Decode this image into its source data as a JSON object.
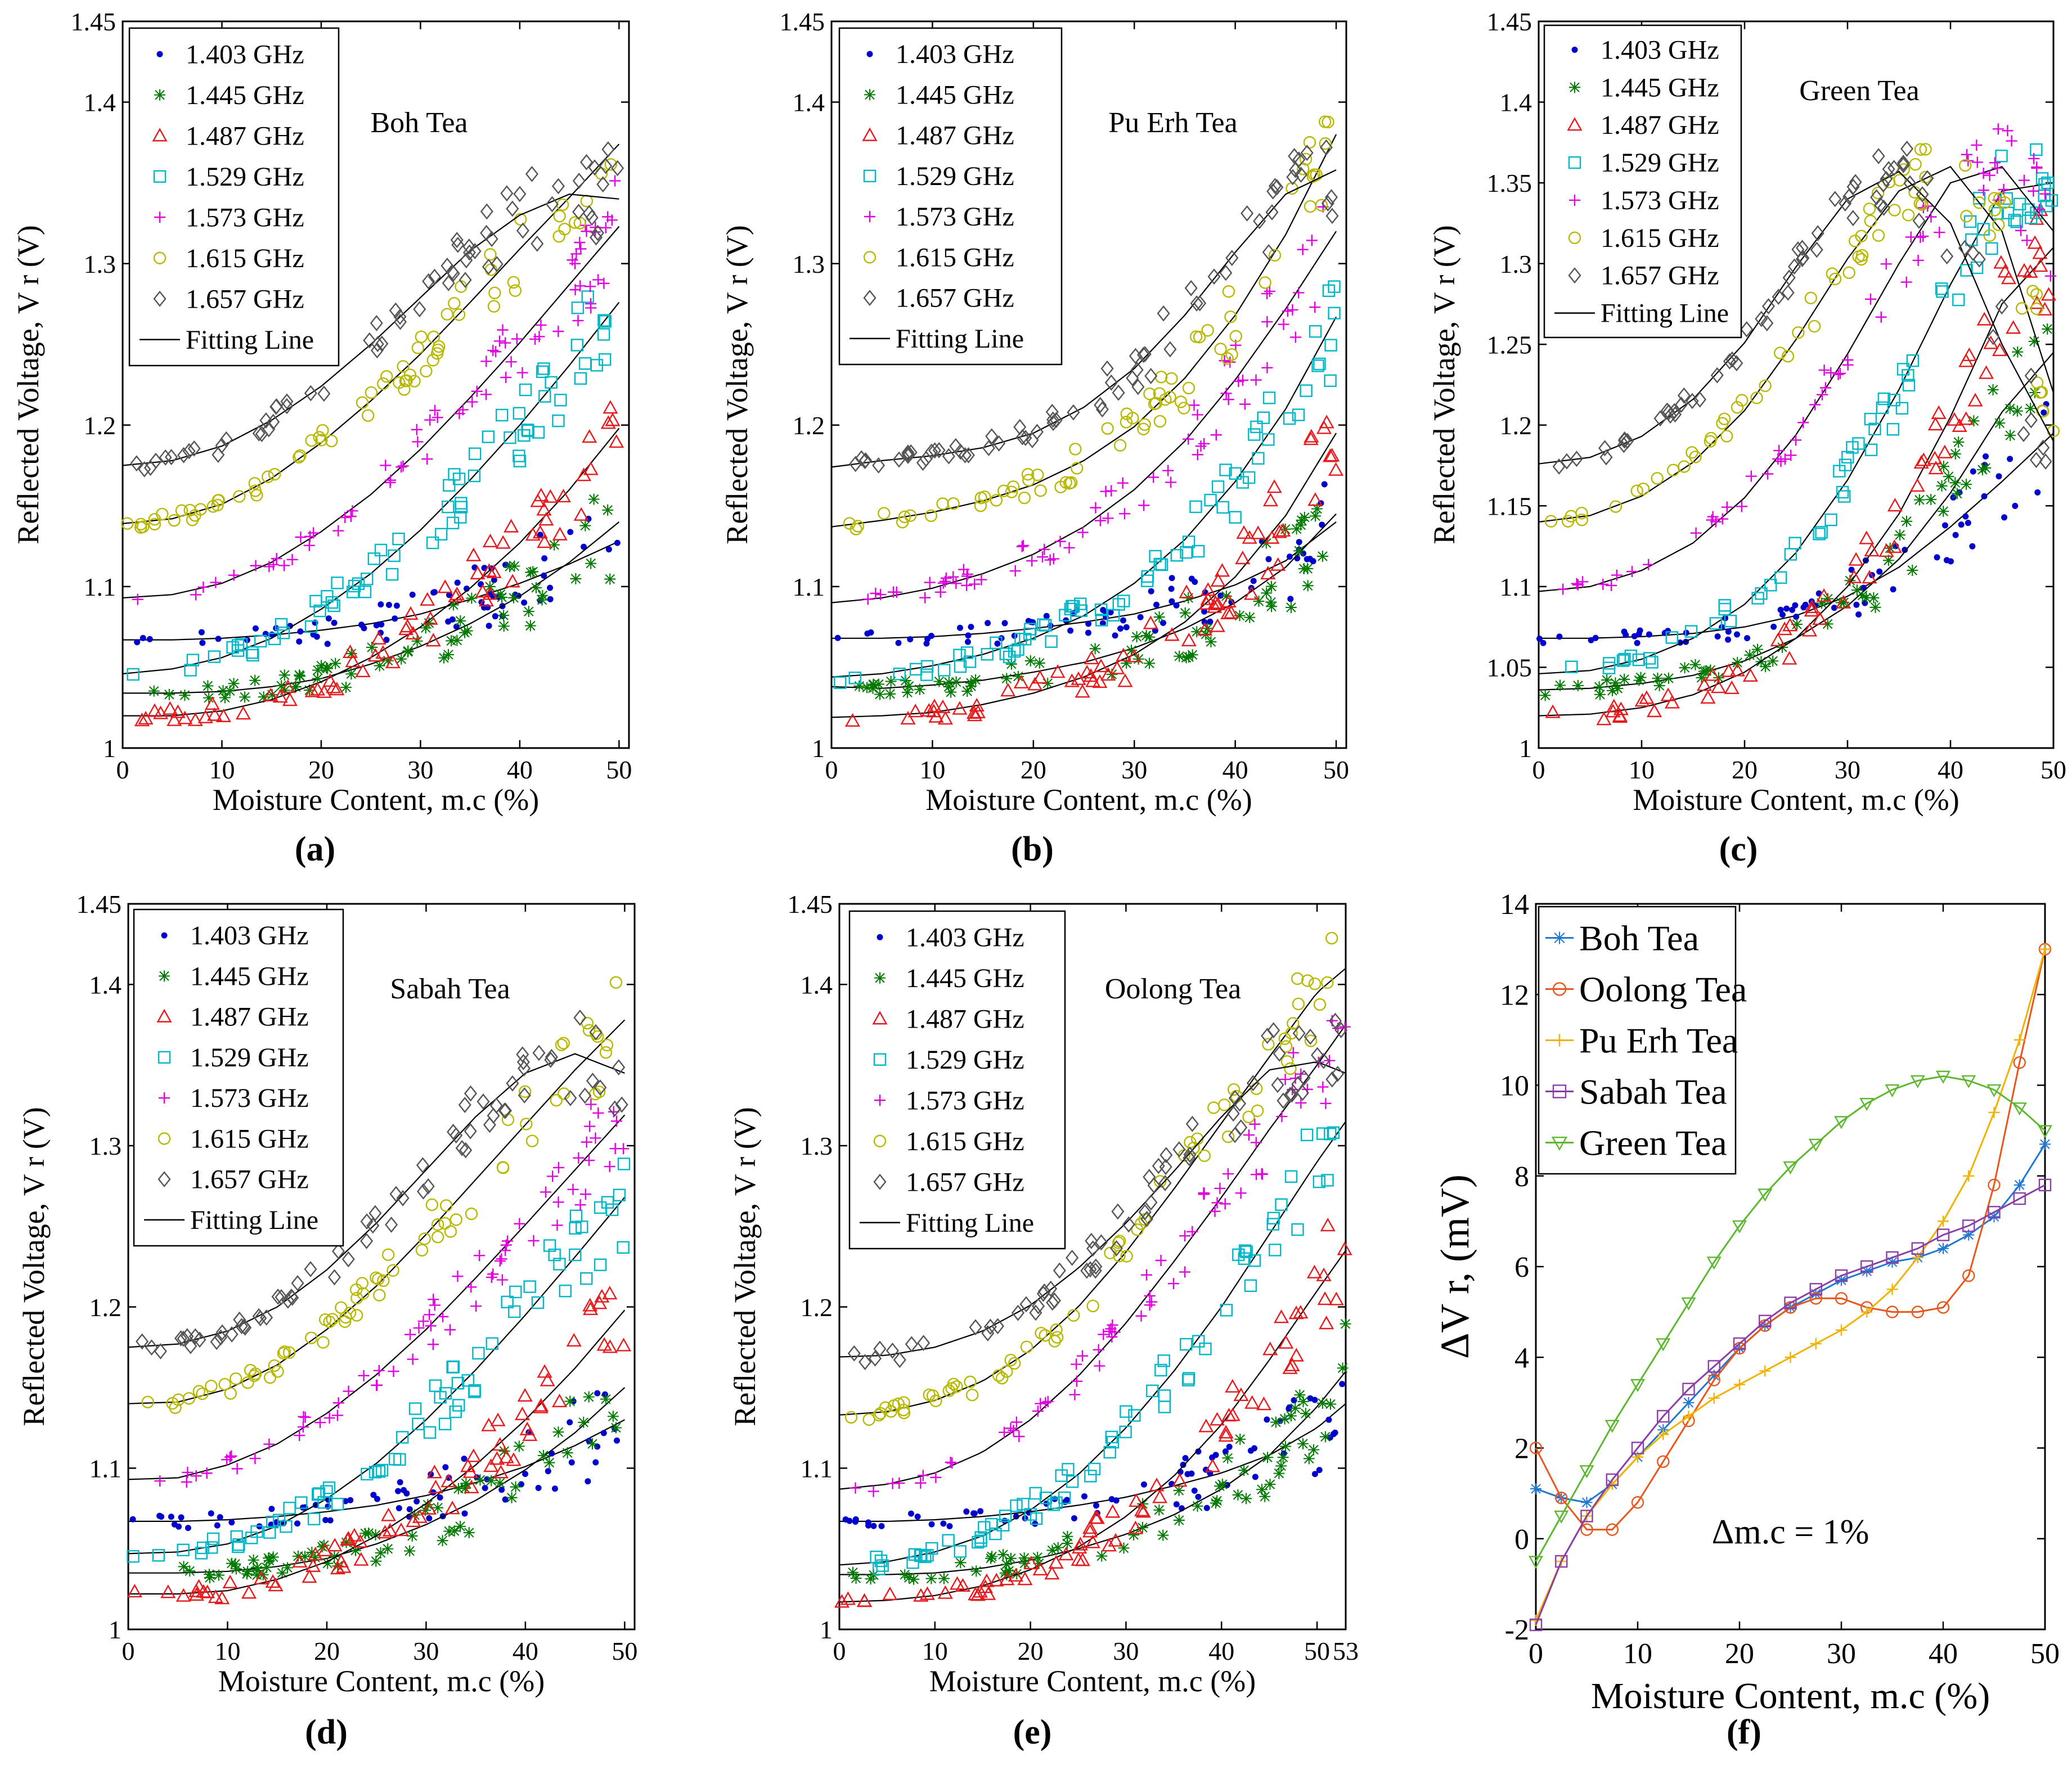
{
  "figure": {
    "panel_labels": [
      "(a)",
      "(b)",
      "(c)",
      "(d)",
      "(e)",
      "(f)"
    ]
  },
  "colors": {
    "1.403 GHz": "#0000cc",
    "1.445 GHz": "#007a00",
    "1.487 GHz": "#e8191b",
    "1.529 GHz": "#00b7c7",
    "1.573 GHz": "#e000e0",
    "1.615 GHz": "#b8b800",
    "1.657 GHz": "#555555",
    "fit": "#000000",
    "Boh Tea": "#1f77d4",
    "Oolong Tea": "#e8561c",
    "Pu Erh Tea": "#f2b300",
    "Sabah Tea": "#8b3ea8",
    "Green Tea": "#5cb82e"
  },
  "chart_data": [
    {
      "id": "a",
      "type": "scatter",
      "title": "Boh Tea",
      "xlabel": "Moisture Content, m.c (%)",
      "ylabel": "Reflected Voltage, V r (V)",
      "xlim": [
        0,
        51
      ],
      "ylim": [
        1,
        1.45
      ],
      "xticks": [
        "0",
        "10",
        "20",
        "30",
        "40",
        "50"
      ],
      "yticks": [
        "1",
        "1.1",
        "1.2",
        "1.3",
        "1.4",
        "1.45"
      ],
      "legend": [
        "1.403 GHz",
        "1.445 GHz",
        "1.487 GHz",
        "1.529 GHz",
        "1.573 GHz",
        "1.615 GHz",
        "1.657 GHz",
        "Fitting Line"
      ],
      "x": [
        0,
        5,
        10,
        15,
        20,
        25,
        30,
        35,
        40,
        45,
        50
      ],
      "series": [
        {
          "name": "1.403 GHz",
          "marker": "dot",
          "values": [
            1.067,
            1.067,
            1.068,
            1.07,
            1.073,
            1.077,
            1.083,
            1.092,
            1.102,
            1.114,
            1.128
          ]
        },
        {
          "name": "1.445 GHz",
          "marker": "asterisk",
          "values": [
            1.034,
            1.034,
            1.035,
            1.038,
            1.043,
            1.052,
            1.063,
            1.077,
            1.094,
            1.115,
            1.14
          ]
        },
        {
          "name": "1.487 GHz",
          "marker": "triangle",
          "values": [
            1.02,
            1.02,
            1.023,
            1.03,
            1.041,
            1.056,
            1.075,
            1.099,
            1.127,
            1.16,
            1.198
          ]
        },
        {
          "name": "1.529 GHz",
          "marker": "square",
          "values": [
            1.046,
            1.049,
            1.056,
            1.068,
            1.086,
            1.108,
            1.135,
            1.166,
            1.2,
            1.237,
            1.276
          ]
        },
        {
          "name": "1.573 GHz",
          "marker": "plus",
          "values": [
            1.093,
            1.095,
            1.102,
            1.115,
            1.134,
            1.157,
            1.185,
            1.217,
            1.251,
            1.287,
            1.323
          ]
        },
        {
          "name": "1.615 GHz",
          "marker": "circle",
          "values": [
            1.139,
            1.142,
            1.151,
            1.167,
            1.189,
            1.215,
            1.244,
            1.276,
            1.309,
            1.341,
            1.374
          ]
        },
        {
          "name": "1.657 GHz",
          "marker": "diamond",
          "values": [
            1.175,
            1.178,
            1.187,
            1.203,
            1.224,
            1.25,
            1.279,
            1.308,
            1.33,
            1.343,
            1.34
          ]
        }
      ]
    },
    {
      "id": "b",
      "type": "scatter",
      "title": "Pu Erh Tea",
      "xlabel": "Moisture Content, m.c (%)",
      "ylabel": "Reflected Voltage, V r (V)",
      "xlim": [
        0,
        51
      ],
      "ylim": [
        1,
        1.45
      ],
      "xticks": [
        "0",
        "10",
        "20",
        "30",
        "40",
        "50"
      ],
      "yticks": [
        "1",
        "1.1",
        "1.2",
        "1.3",
        "1.4",
        "1.45"
      ],
      "legend": [
        "1.403 GHz",
        "1.445 GHz",
        "1.487 GHz",
        "1.529 GHz",
        "1.573 GHz",
        "1.615 GHz",
        "1.657 GHz",
        "Fitting Line"
      ],
      "x": [
        0,
        5,
        10,
        15,
        20,
        25,
        30,
        35,
        40,
        45,
        50
      ],
      "series": [
        {
          "name": "1.403 GHz",
          "marker": "dot",
          "values": [
            1.068,
            1.068,
            1.069,
            1.071,
            1.074,
            1.078,
            1.083,
            1.091,
            1.101,
            1.116,
            1.14
          ]
        },
        {
          "name": "1.445 GHz",
          "marker": "asterisk",
          "values": [
            1.038,
            1.037,
            1.039,
            1.042,
            1.047,
            1.053,
            1.062,
            1.074,
            1.09,
            1.112,
            1.145
          ]
        },
        {
          "name": "1.487 GHz",
          "marker": "triangle",
          "values": [
            1.019,
            1.02,
            1.022,
            1.027,
            1.034,
            1.044,
            1.058,
            1.078,
            1.106,
            1.144,
            1.195
          ]
        },
        {
          "name": "1.529 GHz",
          "marker": "square",
          "values": [
            1.044,
            1.046,
            1.051,
            1.058,
            1.068,
            1.082,
            1.102,
            1.129,
            1.165,
            1.21,
            1.267
          ]
        },
        {
          "name": "1.573 GHz",
          "marker": "plus",
          "values": [
            1.09,
            1.093,
            1.099,
            1.108,
            1.12,
            1.137,
            1.16,
            1.19,
            1.228,
            1.272,
            1.32
          ]
        },
        {
          "name": "1.615 GHz",
          "marker": "circle",
          "values": [
            1.137,
            1.141,
            1.146,
            1.153,
            1.163,
            1.178,
            1.199,
            1.229,
            1.268,
            1.318,
            1.38
          ]
        },
        {
          "name": "1.657 GHz",
          "marker": "diamond",
          "values": [
            1.174,
            1.178,
            1.181,
            1.186,
            1.195,
            1.211,
            1.235,
            1.268,
            1.307,
            1.343,
            1.358
          ]
        }
      ]
    },
    {
      "id": "c",
      "type": "scatter",
      "title": "Green Tea",
      "xlabel": "Moisture Content, m.c (%)",
      "ylabel": "Reflected Voltage, V r (V)",
      "xlim": [
        0,
        50
      ],
      "ylim": [
        1,
        1.45
      ],
      "xticks": [
        "0",
        "10",
        "20",
        "30",
        "40",
        "50"
      ],
      "yticks": [
        "1",
        "1.05",
        "1.1",
        "1.15",
        "1.2",
        "1.25",
        "1.3",
        "1.35",
        "1.4",
        "1.45"
      ],
      "legend": [
        "1.403 GHz",
        "1.445 GHz",
        "1.487 GHz",
        "1.529 GHz",
        "1.573 GHz",
        "1.615 GHz",
        "1.657 GHz",
        "Fitting Line"
      ],
      "x": [
        0,
        5,
        10,
        15,
        20,
        25,
        30,
        35,
        40,
        45,
        50
      ],
      "series": [
        {
          "name": "1.403 GHz",
          "marker": "dot",
          "values": [
            1.068,
            1.068,
            1.069,
            1.071,
            1.075,
            1.082,
            1.094,
            1.112,
            1.137,
            1.165,
            1.195
          ]
        },
        {
          "name": "1.445 GHz",
          "marker": "asterisk",
          "values": [
            1.036,
            1.037,
            1.04,
            1.045,
            1.054,
            1.068,
            1.088,
            1.117,
            1.158,
            1.208,
            1.245
          ]
        },
        {
          "name": "1.487 GHz",
          "marker": "triangle",
          "values": [
            1.02,
            1.021,
            1.025,
            1.033,
            1.047,
            1.068,
            1.1,
            1.145,
            1.205,
            1.275,
            1.31
          ]
        },
        {
          "name": "1.529 GHz",
          "marker": "square",
          "values": [
            1.046,
            1.048,
            1.055,
            1.068,
            1.089,
            1.121,
            1.166,
            1.222,
            1.287,
            1.345,
            1.35
          ]
        },
        {
          "name": "1.573 GHz",
          "marker": "plus",
          "values": [
            1.097,
            1.1,
            1.11,
            1.127,
            1.155,
            1.194,
            1.244,
            1.3,
            1.35,
            1.36,
            1.32
          ]
        },
        {
          "name": "1.615 GHz",
          "marker": "circle",
          "values": [
            1.14,
            1.144,
            1.156,
            1.177,
            1.209,
            1.253,
            1.303,
            1.345,
            1.36,
            1.32,
            1.22
          ]
        },
        {
          "name": "1.657 GHz",
          "marker": "diamond",
          "values": [
            1.176,
            1.18,
            1.193,
            1.216,
            1.251,
            1.298,
            1.34,
            1.357,
            1.325,
            1.25,
            1.19
          ]
        }
      ]
    },
    {
      "id": "d",
      "type": "scatter",
      "title": "Sabah Tea",
      "xlabel": "Moisture Content, m.c (%)",
      "ylabel": "Reflected Voltage, V r (V)",
      "xlim": [
        0,
        51
      ],
      "ylim": [
        1,
        1.45
      ],
      "xticks": [
        "0",
        "10",
        "20",
        "30",
        "40",
        "50"
      ],
      "yticks": [
        "1",
        "1.1",
        "1.2",
        "1.3",
        "1.4",
        "1.45"
      ],
      "legend": [
        "1.403 GHz",
        "1.445 GHz",
        "1.487 GHz",
        "1.529 GHz",
        "1.573 GHz",
        "1.615 GHz",
        "1.657 GHz",
        "Fitting Line"
      ],
      "x": [
        0,
        5,
        10,
        15,
        20,
        25,
        30,
        35,
        40,
        45,
        50
      ],
      "series": [
        {
          "name": "1.403 GHz",
          "marker": "dot",
          "values": [
            1.067,
            1.067,
            1.068,
            1.07,
            1.073,
            1.077,
            1.083,
            1.091,
            1.101,
            1.114,
            1.13
          ]
        },
        {
          "name": "1.445 GHz",
          "marker": "asterisk",
          "values": [
            1.035,
            1.035,
            1.036,
            1.039,
            1.044,
            1.053,
            1.065,
            1.08,
            1.099,
            1.122,
            1.15
          ]
        },
        {
          "name": "1.487 GHz",
          "marker": "triangle",
          "values": [
            1.022,
            1.022,
            1.024,
            1.031,
            1.042,
            1.058,
            1.078,
            1.102,
            1.13,
            1.162,
            1.198
          ]
        },
        {
          "name": "1.529 GHz",
          "marker": "square",
          "values": [
            1.047,
            1.048,
            1.053,
            1.064,
            1.081,
            1.103,
            1.13,
            1.161,
            1.195,
            1.231,
            1.268
          ]
        },
        {
          "name": "1.573 GHz",
          "marker": "plus",
          "values": [
            1.093,
            1.094,
            1.102,
            1.115,
            1.134,
            1.158,
            1.186,
            1.218,
            1.251,
            1.285,
            1.319
          ]
        },
        {
          "name": "1.615 GHz",
          "marker": "circle",
          "values": [
            1.14,
            1.141,
            1.149,
            1.164,
            1.186,
            1.213,
            1.245,
            1.279,
            1.313,
            1.347,
            1.378
          ]
        },
        {
          "name": "1.657 GHz",
          "marker": "diamond",
          "values": [
            1.175,
            1.177,
            1.185,
            1.2,
            1.223,
            1.252,
            1.285,
            1.318,
            1.345,
            1.357,
            1.345
          ]
        }
      ]
    },
    {
      "id": "e",
      "type": "scatter",
      "title": "Oolong Tea",
      "xlabel": "Moisture Content, m.c (%)",
      "ylabel": "Reflected Voltage, V r (V)",
      "xlim": [
        0,
        53
      ],
      "ylim": [
        1,
        1.45
      ],
      "xticks": [
        "0",
        "10",
        "20",
        "30",
        "40",
        "50",
        "53"
      ],
      "yticks": [
        "1",
        "1.1",
        "1.2",
        "1.3",
        "1.4",
        "1.45"
      ],
      "legend": [
        "1.403 GHz",
        "1.445 GHz",
        "1.487 GHz",
        "1.529 GHz",
        "1.573 GHz",
        "1.615 GHz",
        "1.657 GHz",
        "Fitting Line"
      ],
      "x": [
        0,
        5,
        10,
        15,
        20,
        25,
        30,
        35,
        40,
        45,
        50,
        53
      ],
      "series": [
        {
          "name": "1.403 GHz",
          "marker": "dot",
          "values": [
            1.067,
            1.067,
            1.068,
            1.07,
            1.073,
            1.077,
            1.082,
            1.089,
            1.097,
            1.108,
            1.125,
            1.14
          ]
        },
        {
          "name": "1.445 GHz",
          "marker": "asterisk",
          "values": [
            1.034,
            1.034,
            1.035,
            1.038,
            1.043,
            1.05,
            1.059,
            1.071,
            1.087,
            1.108,
            1.138,
            1.16
          ]
        },
        {
          "name": "1.487 GHz",
          "marker": "triangle",
          "values": [
            1.017,
            1.018,
            1.021,
            1.027,
            1.037,
            1.051,
            1.07,
            1.095,
            1.127,
            1.167,
            1.21,
            1.235
          ]
        },
        {
          "name": "1.529 GHz",
          "marker": "square",
          "values": [
            1.04,
            1.042,
            1.048,
            1.058,
            1.074,
            1.096,
            1.125,
            1.16,
            1.2,
            1.245,
            1.29,
            1.315
          ]
        },
        {
          "name": "1.573 GHz",
          "marker": "plus",
          "values": [
            1.087,
            1.09,
            1.097,
            1.11,
            1.13,
            1.157,
            1.19,
            1.228,
            1.268,
            1.31,
            1.35,
            1.375
          ]
        },
        {
          "name": "1.615 GHz",
          "marker": "circle",
          "values": [
            1.133,
            1.135,
            1.142,
            1.154,
            1.173,
            1.2,
            1.234,
            1.273,
            1.314,
            1.355,
            1.395,
            1.41
          ]
        },
        {
          "name": "1.657 GHz",
          "marker": "diamond",
          "values": [
            1.169,
            1.17,
            1.175,
            1.185,
            1.201,
            1.224,
            1.252,
            1.284,
            1.318,
            1.347,
            1.352,
            1.345
          ]
        }
      ]
    },
    {
      "id": "f",
      "type": "line",
      "xlabel": "Moisture Content, m.c (%)",
      "ylabel": "ΔV r, (mV)",
      "xlim": [
        0,
        50
      ],
      "ylim": [
        -2,
        14
      ],
      "xticks": [
        "0",
        "10",
        "20",
        "30",
        "40",
        "50"
      ],
      "yticks": [
        "-2",
        "0",
        "2",
        "4",
        "6",
        "8",
        "10",
        "12",
        "14"
      ],
      "annotation": "Δm.c = 1%",
      "legend": [
        "Boh Tea",
        "Oolong Tea",
        "Pu Erh Tea",
        "Sabah Tea",
        "Green Tea"
      ],
      "x": [
        0,
        2.5,
        5,
        7.5,
        10,
        12.5,
        15,
        17.5,
        20,
        22.5,
        25,
        27.5,
        30,
        32.5,
        35,
        37.5,
        40,
        42.5,
        45,
        47.5,
        50
      ],
      "series": [
        {
          "name": "Boh Tea",
          "marker": "asterisk",
          "values": [
            1.1,
            0.9,
            0.8,
            1.2,
            1.8,
            2.4,
            3.0,
            3.6,
            4.2,
            4.7,
            5.1,
            5.4,
            5.7,
            5.9,
            6.1,
            6.2,
            6.4,
            6.7,
            7.1,
            7.8,
            8.7
          ]
        },
        {
          "name": "Oolong Tea",
          "marker": "circle",
          "values": [
            2.0,
            0.9,
            0.2,
            0.2,
            0.8,
            1.7,
            2.6,
            3.5,
            4.2,
            4.7,
            5.1,
            5.3,
            5.3,
            5.1,
            5.0,
            5.0,
            5.1,
            5.8,
            7.8,
            10.5,
            13.0
          ]
        },
        {
          "name": "Pu Erh Tea",
          "marker": "plus",
          "values": [
            -1.8,
            -0.5,
            0.5,
            1.2,
            1.8,
            2.3,
            2.7,
            3.1,
            3.4,
            3.7,
            4.0,
            4.3,
            4.6,
            5.0,
            5.5,
            6.2,
            7.0,
            8.0,
            9.4,
            11.0,
            13.0
          ]
        },
        {
          "name": "Sabah Tea",
          "marker": "square",
          "values": [
            -1.9,
            -0.5,
            0.5,
            1.3,
            2.0,
            2.7,
            3.3,
            3.8,
            4.3,
            4.8,
            5.2,
            5.5,
            5.8,
            6.0,
            6.2,
            6.4,
            6.7,
            6.9,
            7.2,
            7.5,
            7.8
          ]
        },
        {
          "name": "Green Tea",
          "marker": "triangle-down",
          "values": [
            -0.5,
            0.5,
            1.5,
            2.5,
            3.4,
            4.3,
            5.2,
            6.1,
            6.9,
            7.6,
            8.2,
            8.7,
            9.2,
            9.6,
            9.9,
            10.1,
            10.2,
            10.1,
            9.9,
            9.5,
            9.0
          ]
        }
      ]
    }
  ]
}
